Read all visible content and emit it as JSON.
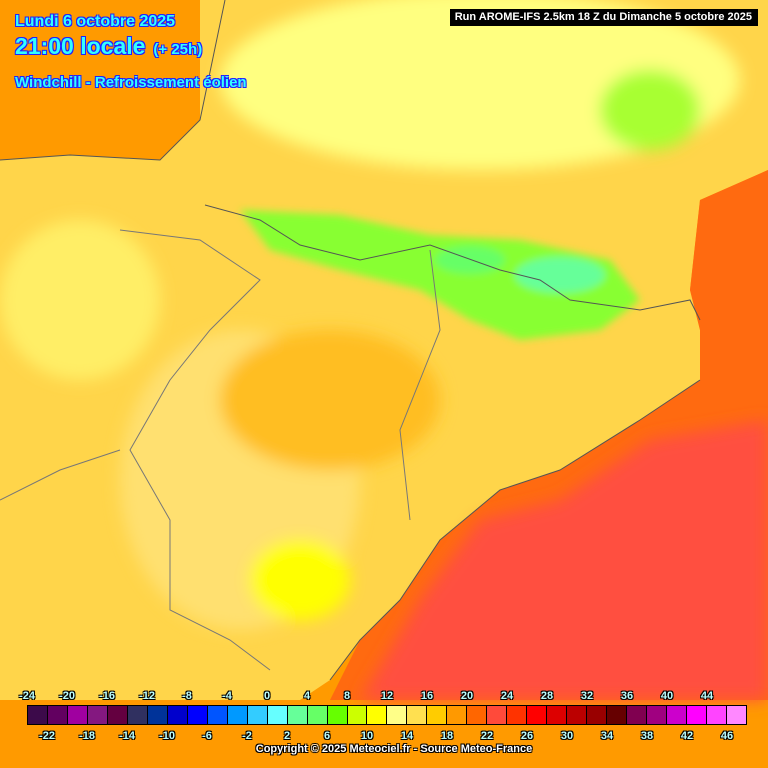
{
  "header": {
    "date": "Lundi 6 octobre 2025",
    "time": "21:00 locale",
    "lead": "(+ 25h)",
    "parameter": "Windchill - Refroissement éolien",
    "run": "Run AROME-IFS 2.5km 18 Z du Dimanche 5 octobre 2025"
  },
  "legend": {
    "top_labels": [
      "-24",
      "-20",
      "-16",
      "-12",
      "-8",
      "-4",
      "0",
      "4",
      "8",
      "12",
      "16",
      "20",
      "24",
      "28",
      "32",
      "36",
      "40",
      "44"
    ],
    "bottom_labels": [
      "-22",
      "-18",
      "-14",
      "-10",
      "-6",
      "-2",
      "2",
      "6",
      "10",
      "14",
      "18",
      "22",
      "26",
      "30",
      "34",
      "38",
      "42",
      "46"
    ],
    "colors": [
      "#3c0a4a",
      "#620060",
      "#a000a0",
      "#841880",
      "#640040",
      "#303060",
      "#003399",
      "#0000cc",
      "#0000ff",
      "#0055ff",
      "#0099ff",
      "#33ccff",
      "#66ffff",
      "#66ff99",
      "#66ff66",
      "#66ff00",
      "#ccff00",
      "#ffff00",
      "#ffff88",
      "#ffe050",
      "#ffcc00",
      "#ff9900",
      "#ff6600",
      "#ff4a3a",
      "#ff3300",
      "#ff0000",
      "#dd0000",
      "#bb0000",
      "#990000",
      "#660000",
      "#800050",
      "#a00080",
      "#cc00cc",
      "#ff00ff",
      "#ff44ff",
      "#ff88ff"
    ]
  },
  "copyright": "Copyright © 2025 Meteociel.fr - Source Meteo-France"
}
